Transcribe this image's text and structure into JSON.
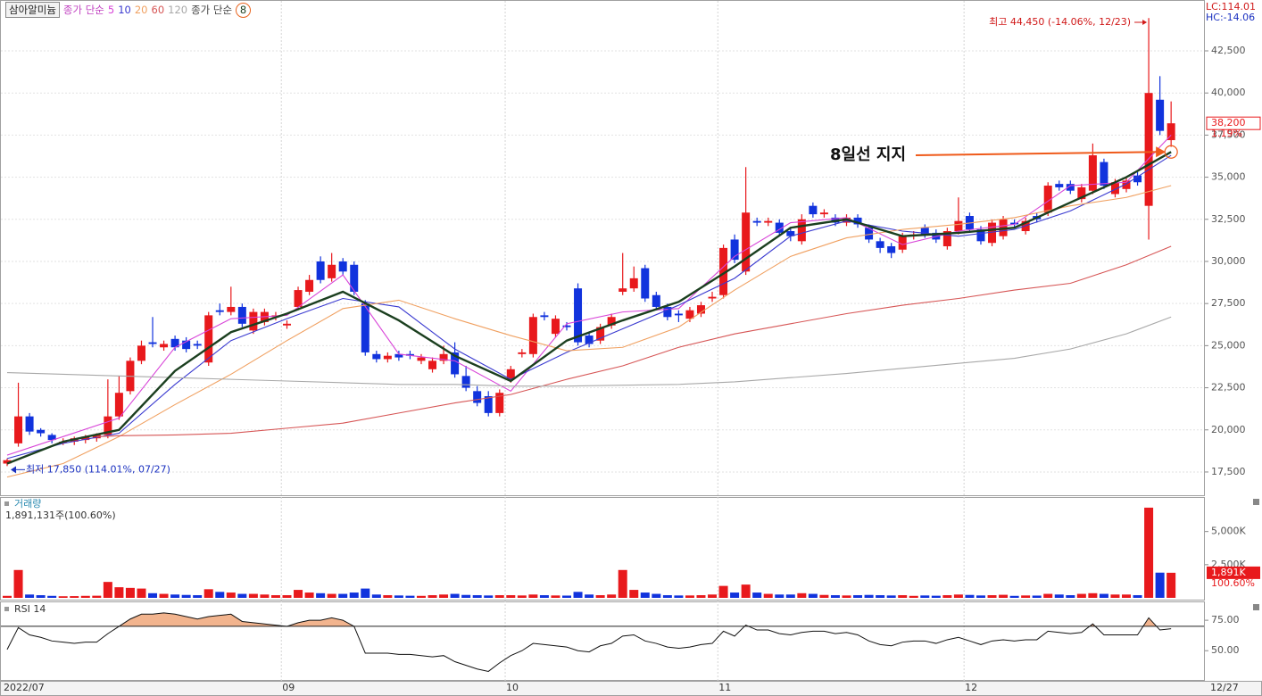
{
  "chart_data": [
    {
      "type": "candlestick",
      "company": "삼아알미늄",
      "ma_legend_label": "종가 단순",
      "ma8_legend_label": "종가 단순",
      "up_color": "#e8191c",
      "down_color": "#1133dd",
      "open": [
        18000,
        19200,
        20800,
        20000,
        19700,
        19300,
        19300,
        19400,
        19500,
        19700,
        20800,
        22300,
        24100,
        25200,
        24900,
        25400,
        25300,
        25100,
        24000,
        27100,
        27000,
        27300,
        25900,
        26400,
        26700,
        26200,
        27300,
        28200,
        30000,
        29000,
        30000,
        29800,
        27500,
        24500,
        24200,
        24500,
        24500,
        24100,
        23600,
        24100,
        24600,
        23200,
        22300,
        22000,
        21000,
        23000,
        24500,
        24500,
        26800,
        25700,
        26200,
        28400,
        25600,
        25300,
        26200,
        28200,
        28400,
        29600,
        28000,
        27300,
        26900,
        26600,
        26900,
        27800,
        28000,
        31300,
        29400,
        32400,
        32300,
        32300,
        31800,
        31200,
        33300,
        32800,
        32600,
        32300,
        32600,
        32000,
        31200,
        30900,
        30700,
        31500,
        32000,
        31700,
        30900,
        31800,
        32700,
        31900,
        31100,
        31500,
        32300,
        31800,
        32700,
        32900,
        34600,
        34600,
        33700,
        34200,
        35900,
        34000,
        34300,
        35100,
        33300,
        39600,
        37200
      ],
      "high": [
        18300,
        22800,
        21000,
        20100,
        19800,
        19500,
        19600,
        19700,
        19800,
        23000,
        23200,
        24300,
        25300,
        26700,
        25300,
        25600,
        25500,
        25300,
        27000,
        27500,
        28500,
        27500,
        27200,
        27200,
        27000,
        26500,
        28500,
        29200,
        30300,
        30500,
        30200,
        30000,
        27700,
        24700,
        24600,
        24700,
        24700,
        24500,
        24300,
        25000,
        25200,
        23800,
        22600,
        22300,
        22400,
        23800,
        24800,
        26900,
        27000,
        26800,
        26400,
        28700,
        25800,
        26300,
        26900,
        30500,
        29700,
        29800,
        28200,
        27500,
        27100,
        27300,
        27600,
        28200,
        31000,
        31600,
        35600,
        32600,
        32600,
        32500,
        32000,
        32800,
        33500,
        33100,
        32800,
        32800,
        32800,
        32200,
        31400,
        31100,
        31700,
        31800,
        32200,
        31900,
        32000,
        33800,
        32900,
        32100,
        32500,
        32700,
        32500,
        32600,
        32900,
        34700,
        34800,
        34800,
        34600,
        37000,
        36100,
        34900,
        35000,
        35300,
        44450,
        41000,
        39500
      ],
      "low": [
        17850,
        19000,
        19700,
        19600,
        19200,
        19100,
        19100,
        19200,
        19300,
        19500,
        20600,
        22100,
        23900,
        24900,
        24700,
        24700,
        24600,
        24800,
        23800,
        26800,
        26800,
        26100,
        25700,
        26200,
        26500,
        26000,
        27100,
        28000,
        28700,
        28800,
        29200,
        28000,
        24400,
        24000,
        24000,
        24100,
        24200,
        23900,
        23400,
        23900,
        23100,
        22300,
        21400,
        20800,
        20800,
        22800,
        24300,
        24300,
        26500,
        25500,
        25900,
        25000,
        24900,
        25100,
        26000,
        28000,
        28200,
        27600,
        27100,
        26500,
        26400,
        26400,
        26700,
        27600,
        27800,
        29900,
        29200,
        32100,
        32100,
        31500,
        31200,
        31000,
        32600,
        32600,
        32100,
        32100,
        32000,
        31100,
        30500,
        30200,
        30500,
        31300,
        31400,
        31100,
        30700,
        31600,
        31700,
        31000,
        30900,
        31300,
        32000,
        31600,
        32300,
        32700,
        34200,
        34000,
        33500,
        34000,
        34300,
        33800,
        34100,
        34500,
        31300,
        37500,
        36800
      ],
      "close": [
        18200,
        20800,
        19900,
        19800,
        19400,
        19300,
        19500,
        19600,
        19700,
        20800,
        22200,
        24100,
        25000,
        25100,
        25100,
        24900,
        24800,
        25000,
        26800,
        27000,
        27300,
        26300,
        27000,
        27000,
        26800,
        26300,
        28300,
        28900,
        28900,
        29800,
        29400,
        28200,
        24600,
        24200,
        24400,
        24300,
        24400,
        24300,
        24100,
        24500,
        23300,
        22500,
        21600,
        21000,
        22200,
        23600,
        24600,
        26700,
        26700,
        26600,
        26100,
        25200,
        25100,
        26100,
        26700,
        28400,
        29000,
        27800,
        27300,
        26700,
        26800,
        27100,
        27400,
        27900,
        30800,
        30100,
        32900,
        32300,
        32400,
        31700,
        31500,
        32500,
        32800,
        32900,
        32300,
        32600,
        32200,
        31300,
        30800,
        30500,
        31500,
        31600,
        31600,
        31300,
        31800,
        32400,
        31900,
        31200,
        32300,
        32500,
        32200,
        32400,
        32500,
        34500,
        34400,
        34200,
        34400,
        36300,
        34500,
        34700,
        34800,
        34700,
        40000,
        37750,
        38200
      ],
      "series": [
        {
          "name": "5",
          "color": "#d844d8",
          "x": [
            0,
            5,
            10,
            15,
            20,
            25,
            30,
            35,
            40,
            45,
            50,
            55,
            60,
            65,
            70,
            75,
            80,
            85,
            90,
            95,
            100,
            104
          ],
          "values": [
            18500,
            19600,
            20700,
            24900,
            26600,
            26800,
            29200,
            24500,
            24100,
            22300,
            26300,
            27000,
            27200,
            30300,
            32300,
            32600,
            31000,
            31800,
            32200,
            34500,
            34700,
            37500
          ]
        },
        {
          "name": "10",
          "color": "#3a3ad0",
          "x": [
            0,
            5,
            10,
            15,
            20,
            25,
            30,
            35,
            40,
            45,
            50,
            55,
            60,
            65,
            70,
            75,
            80,
            85,
            90,
            95,
            100,
            104
          ],
          "values": [
            18300,
            19200,
            19800,
            22700,
            25300,
            26600,
            27800,
            27300,
            24800,
            23000,
            24600,
            26000,
            27400,
            29000,
            31500,
            32400,
            31800,
            31500,
            31900,
            33000,
            34600,
            36300
          ]
        },
        {
          "name": "20",
          "color": "#f0a060",
          "x": [
            0,
            5,
            10,
            15,
            20,
            25,
            30,
            35,
            40,
            45,
            50,
            55,
            60,
            65,
            70,
            75,
            80,
            85,
            90,
            95,
            100,
            104
          ],
          "values": [
            17200,
            18000,
            19600,
            21500,
            23300,
            25300,
            27200,
            27700,
            26600,
            25600,
            24700,
            24900,
            26100,
            28300,
            30300,
            31400,
            31900,
            32200,
            32600,
            33300,
            33800,
            34500
          ]
        },
        {
          "name": "60",
          "color": "#d65555",
          "x": [
            8,
            10,
            15,
            20,
            25,
            30,
            35,
            40,
            45,
            50,
            55,
            60,
            65,
            70,
            75,
            80,
            85,
            90,
            95,
            100,
            104
          ],
          "values": [
            19600,
            19650,
            19700,
            19800,
            20100,
            20400,
            21000,
            21600,
            22100,
            23000,
            23800,
            24900,
            25700,
            26300,
            26900,
            27400,
            27800,
            28300,
            28700,
            29800,
            30900
          ]
        },
        {
          "name": "120",
          "color": "#a8a8a8",
          "x": [
            0,
            5,
            10,
            15,
            20,
            25,
            30,
            35,
            40,
            45,
            50,
            55,
            60,
            65,
            70,
            75,
            80,
            85,
            90,
            95,
            100,
            104
          ],
          "values": [
            23400,
            23300,
            23200,
            23100,
            23000,
            22900,
            22800,
            22700,
            22700,
            22600,
            22600,
            22650,
            22700,
            22850,
            23100,
            23350,
            23650,
            23950,
            24250,
            24800,
            25700,
            26700
          ]
        },
        {
          "name": "8",
          "color": "#1b3f1f",
          "x": [
            0,
            5,
            10,
            15,
            20,
            25,
            30,
            35,
            40,
            45,
            50,
            55,
            60,
            65,
            70,
            75,
            80,
            85,
            90,
            95,
            100,
            104
          ],
          "values": [
            18000,
            19300,
            20000,
            23500,
            25800,
            26900,
            28200,
            26500,
            24400,
            22900,
            25300,
            26500,
            27600,
            29700,
            32000,
            32500,
            31500,
            31700,
            32000,
            33500,
            35000,
            36500
          ]
        }
      ],
      "ylim": [
        16120,
        45520
      ],
      "yticks": [
        {
          "value": 17500,
          "label": "17,500"
        },
        {
          "value": 20000,
          "label": "20,000"
        },
        {
          "value": 22500,
          "label": "22,500"
        },
        {
          "value": 25000,
          "label": "25,000"
        },
        {
          "value": 27500,
          "label": "27,500"
        },
        {
          "value": 30000,
          "label": "30,000"
        },
        {
          "value": 32500,
          "label": "32,500"
        },
        {
          "value": 35000,
          "label": "35,000"
        },
        {
          "value": 37500,
          "label": "37,500"
        },
        {
          "value": 40000,
          "label": "40,000"
        },
        {
          "value": 42500,
          "label": "42,500"
        }
      ],
      "xticks": [
        {
          "value": 0,
          "label": "2022/07"
        },
        {
          "value": 24.5,
          "label": "09"
        },
        {
          "value": 44.5,
          "label": "10"
        },
        {
          "value": 63.5,
          "label": "11"
        },
        {
          "value": 85.5,
          "label": "12"
        }
      ],
      "end_label": "12/27",
      "high_label": "최고 44,450 (-14.06%, 12/23)",
      "low_label": "최저 17,850 (114.01%, 07/27)",
      "note": "8일선 지지",
      "lc_label": "LC:114.01",
      "hc_label": "HC:-14.06",
      "last_price": {
        "value": 38200,
        "label": "38,200"
      },
      "change_label": "1.19%"
    },
    {
      "type": "bar",
      "title": "거래량",
      "subtitle": "1,891,131주(100.60%)",
      "values": [
        150,
        2100,
        250,
        200,
        150,
        120,
        130,
        150,
        160,
        1200,
        800,
        750,
        700,
        350,
        300,
        250,
        220,
        200,
        650,
        450,
        400,
        300,
        300,
        250,
        200,
        200,
        600,
        400,
        350,
        300,
        300,
        400,
        700,
        250,
        200,
        180,
        160,
        150,
        200,
        250,
        300,
        220,
        200,
        180,
        200,
        200,
        180,
        250,
        200,
        180,
        170,
        450,
        250,
        200,
        250,
        2100,
        600,
        400,
        300,
        200,
        180,
        180,
        200,
        250,
        900,
        400,
        1000,
        400,
        300,
        250,
        250,
        350,
        300,
        220,
        200,
        180,
        200,
        220,
        200,
        180,
        200,
        150,
        180,
        160,
        200,
        250,
        220,
        180,
        200,
        230,
        150,
        180,
        170,
        300,
        250,
        200,
        300,
        350,
        300,
        250,
        250,
        200,
        6800,
        1900,
        1891
      ],
      "ylim": [
        0,
        7400
      ],
      "yticks": [
        {
          "value": 2500,
          "label": "2,500K"
        },
        {
          "value": 5000,
          "label": "5,000K"
        }
      ],
      "last_label": {
        "value": 1891,
        "label": "1,891K"
      },
      "last_change": "100.60%"
    },
    {
      "type": "line",
      "title": "RSI 14",
      "color": "#111111",
      "fill": "#f2b48e",
      "values": [
        51,
        69,
        63,
        61,
        58,
        57,
        56,
        57,
        57,
        64,
        70,
        76,
        80,
        80,
        81,
        80,
        78,
        76,
        78,
        79,
        80,
        74,
        73,
        72,
        71,
        70,
        73,
        75,
        75,
        77,
        75,
        70,
        48,
        48,
        48,
        47,
        47,
        46,
        45,
        46,
        41,
        38,
        35,
        33,
        40,
        46,
        50,
        56,
        55,
        54,
        53,
        50,
        49,
        54,
        56,
        62,
        63,
        58,
        56,
        53,
        52,
        53,
        55,
        56,
        66,
        62,
        71,
        67,
        67,
        64,
        63,
        65,
        66,
        66,
        64,
        65,
        63,
        58,
        55,
        54,
        57,
        58,
        58,
        56,
        59,
        61,
        58,
        55,
        58,
        59,
        58,
        59,
        59,
        66,
        65,
        64,
        65,
        72,
        63,
        63,
        63,
        63,
        77,
        67,
        68
      ],
      "ylim": [
        26,
        89
      ],
      "yticks": [
        {
          "value": 50,
          "label": "50.00"
        },
        {
          "value": 75,
          "label": "75.00"
        }
      ],
      "signal_level": 70
    }
  ]
}
